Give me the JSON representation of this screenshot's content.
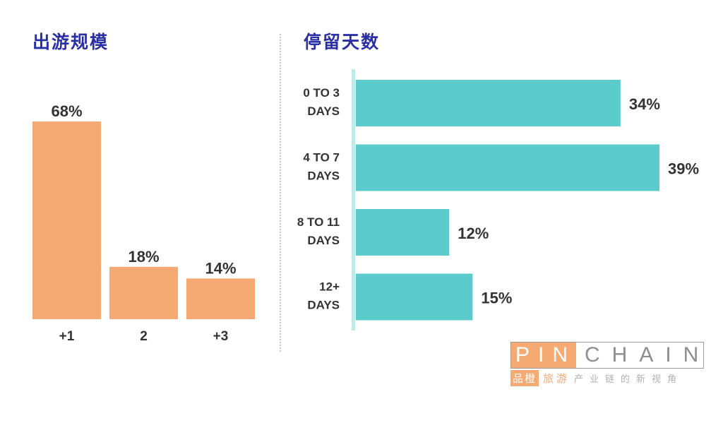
{
  "left_chart_title": "出游规模",
  "right_chart_title": "停留天数",
  "colors": {
    "title": "#2a2fa6",
    "orange": "#f5a973",
    "teal": "#5ccbcb",
    "axis": "#bfeaea",
    "text": "#333333"
  },
  "chart_data": [
    {
      "type": "bar",
      "title": "出游规模",
      "categories": [
        "+1",
        "2",
        "+3"
      ],
      "values": [
        68,
        18,
        14
      ],
      "value_labels": [
        "68%",
        "18%",
        "14%"
      ],
      "ylim": [
        0,
        68
      ],
      "xlabel": "",
      "ylabel": "",
      "grid": false
    },
    {
      "type": "bar",
      "orientation": "horizontal",
      "title": "停留天数",
      "categories": [
        [
          "0 TO 3",
          "DAYS"
        ],
        [
          "4 TO 7",
          "DAYS"
        ],
        [
          "8 TO 11",
          "DAYS"
        ],
        [
          "12+",
          "DAYS"
        ]
      ],
      "values": [
        34,
        39,
        12,
        15
      ],
      "value_labels": [
        "34%",
        "39%",
        "12%",
        "15%"
      ],
      "xlim": [
        0,
        39
      ],
      "xlabel": "",
      "ylabel": "",
      "grid": false
    }
  ],
  "logo": {
    "pin": "PIN",
    "chain": "CHAIN",
    "mark": "品橙",
    "tag1": "旅游",
    "tag2": "产业链的新视角"
  }
}
